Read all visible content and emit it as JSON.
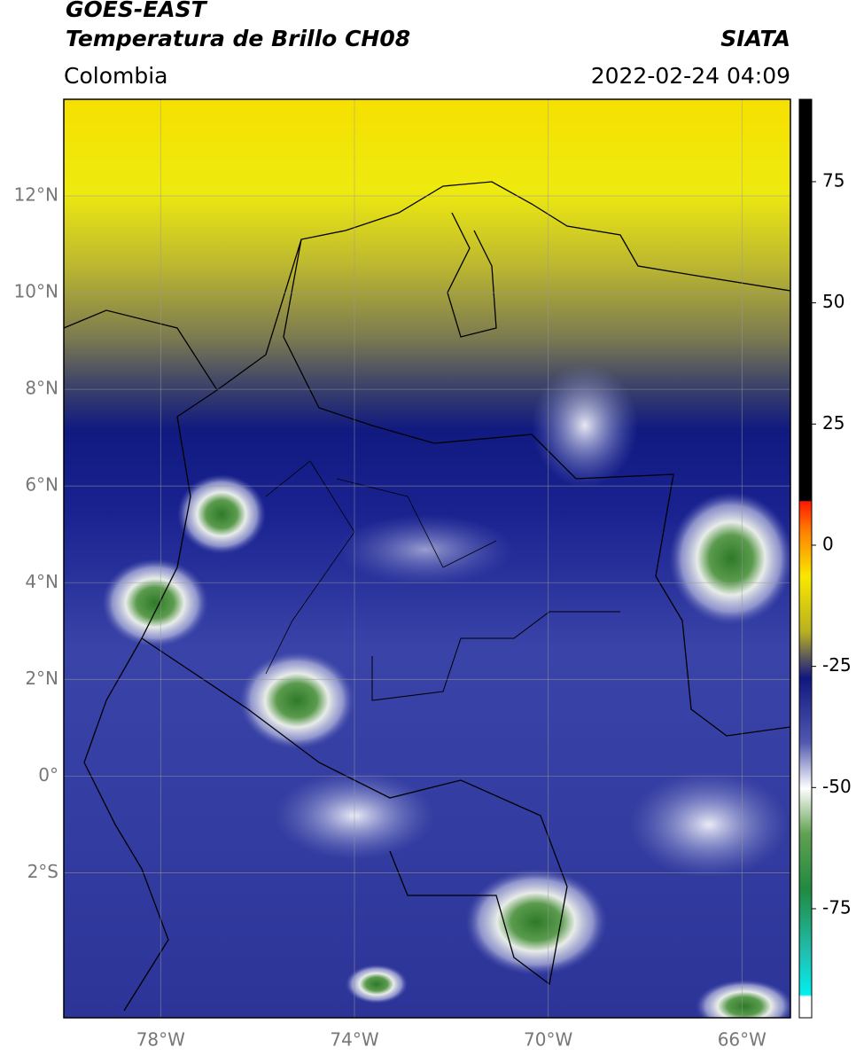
{
  "header": {
    "title": "GOES-EAST",
    "subtitle": "Temperatura de Brillo CH08",
    "source": "SIATA",
    "region": "Colombia",
    "datetime": "2022-02-24 04:09"
  },
  "map": {
    "lon_range": [
      -80,
      -65
    ],
    "lat_range": [
      -5,
      14
    ],
    "lat_ticks": [
      {
        "value": 12,
        "label": "12°N"
      },
      {
        "value": 10,
        "label": "10°N"
      },
      {
        "value": 8,
        "label": "8°N"
      },
      {
        "value": 6,
        "label": "6°N"
      },
      {
        "value": 4,
        "label": "4°N"
      },
      {
        "value": 2,
        "label": "2°N"
      },
      {
        "value": 0,
        "label": "0°"
      },
      {
        "value": -2,
        "label": "2°S"
      }
    ],
    "lon_ticks": [
      {
        "value": -78,
        "label": "78°W"
      },
      {
        "value": -74,
        "label": "74°W"
      },
      {
        "value": -70,
        "label": "70°W"
      },
      {
        "value": -66,
        "label": "66°W"
      }
    ]
  },
  "colorbar": {
    "range": [
      -97.5,
      92
    ],
    "ticks": [
      75,
      50,
      25,
      0,
      -25,
      -50,
      -75
    ]
  }
}
